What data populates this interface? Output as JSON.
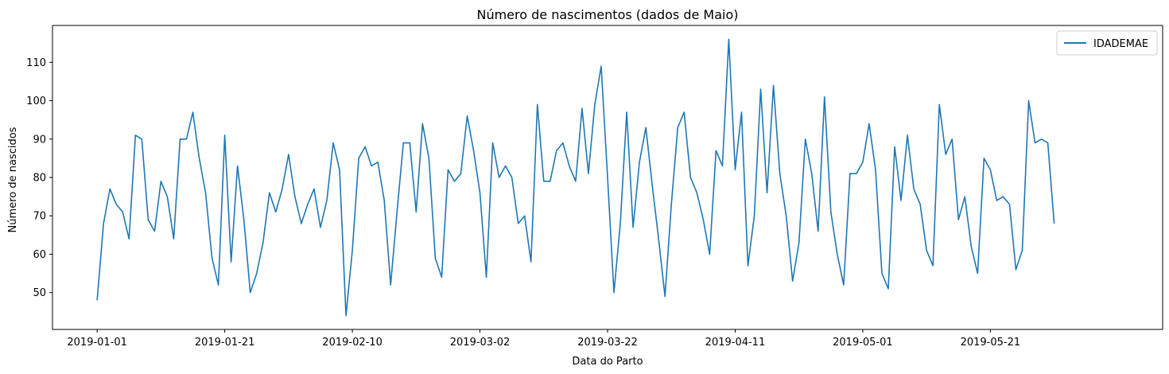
{
  "chart_data": {
    "type": "line",
    "title": "Número de nascimentos (dados de Maio)",
    "xlabel": "Data do Parto",
    "ylabel": "Número de nascidos",
    "x_start": "2019-01-01",
    "x_step_days": 1,
    "xlim": [
      "2018-12-25",
      "2019-06-17"
    ],
    "ylim": [
      40.4,
      119.6
    ],
    "x_ticks": [
      "2019-01-01",
      "2019-01-21",
      "2019-02-10",
      "2019-03-02",
      "2019-03-22",
      "2019-04-11",
      "2019-05-01",
      "2019-05-21"
    ],
    "y_ticks": [
      50,
      60,
      70,
      80,
      90,
      100,
      110
    ],
    "grid": false,
    "legend": "top-right",
    "series": [
      {
        "name": "IDADEMAE",
        "color": "#1f77b4",
        "values": [
          48,
          68,
          77,
          73,
          71,
          64,
          91,
          90,
          69,
          66,
          79,
          75,
          64,
          90,
          90,
          97,
          85,
          76,
          59,
          52,
          91,
          58,
          83,
          69,
          50,
          55,
          63,
          76,
          71,
          77,
          86,
          75,
          68,
          73,
          77,
          67,
          74,
          89,
          82,
          44,
          61,
          85,
          88,
          83,
          84,
          74,
          52,
          71,
          89,
          89,
          71,
          94,
          85,
          59,
          54,
          82,
          79,
          81,
          96,
          87,
          76,
          54,
          89,
          80,
          83,
          80,
          68,
          70,
          58,
          99,
          79,
          79,
          87,
          89,
          83,
          79,
          98,
          81,
          99,
          109,
          80,
          50,
          68,
          97,
          67,
          84,
          93,
          78,
          64,
          49,
          73,
          93,
          97,
          80,
          76,
          69,
          60,
          87,
          83,
          116,
          82,
          97,
          57,
          70,
          103,
          76,
          104,
          81,
          70,
          53,
          63,
          90,
          81,
          66,
          101,
          71,
          60,
          52,
          81,
          81,
          84,
          94,
          82,
          55,
          51,
          88,
          74,
          91,
          77,
          73,
          61,
          57,
          99,
          86,
          90,
          69,
          75,
          62,
          55,
          85,
          82,
          74,
          75,
          73,
          56,
          61,
          100,
          89,
          90,
          89,
          68
        ]
      }
    ]
  }
}
